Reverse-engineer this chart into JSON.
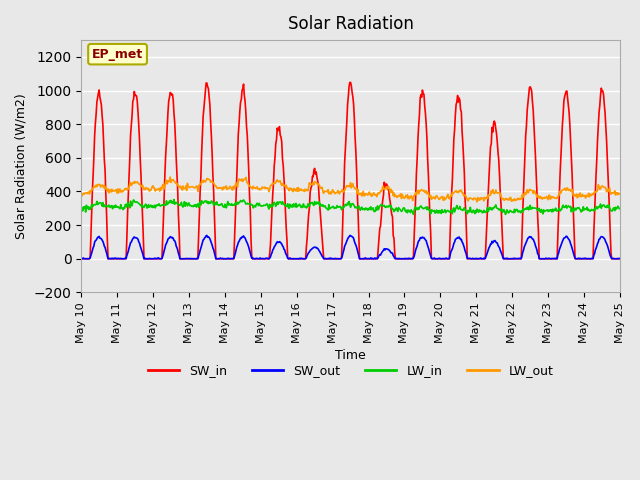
{
  "title": "Solar Radiation",
  "xlabel": "Time",
  "ylabel": "Solar Radiation (W/m2)",
  "ylim": [
    -200,
    1300
  ],
  "yticks": [
    -200,
    0,
    200,
    400,
    600,
    800,
    1000,
    1200
  ],
  "xlim": [
    0,
    15
  ],
  "x_tick_labels": [
    "May 10",
    "May 11",
    "May 12",
    "May 13",
    "May 14",
    "May 15",
    "May 16",
    "May 17",
    "May 18",
    "May 19",
    "May 20",
    "May 21",
    "May 22",
    "May 23",
    "May 24",
    "May 25"
  ],
  "background_color": "#e8e8e8",
  "axes_facecolor": "#e8e8e8",
  "grid_color": "white",
  "annotation_text": "EP_met",
  "annotation_color": "#8b0000",
  "annotation_bg": "#ffffcc",
  "sw_in_color": "#ff0000",
  "sw_out_color": "#0000ff",
  "lw_in_color": "#00cc00",
  "lw_out_color": "#ff9900",
  "line_width": 1.2,
  "legend_labels": [
    "SW_in",
    "SW_out",
    "LW_in",
    "LW_out"
  ],
  "num_days": 15,
  "dt_hours": 0.5,
  "day_peaks_sw_in": [
    1000,
    1000,
    1000,
    1040,
    1010,
    780,
    520,
    1050,
    430,
    1000,
    980,
    810,
    1010,
    1000,
    1000
  ]
}
